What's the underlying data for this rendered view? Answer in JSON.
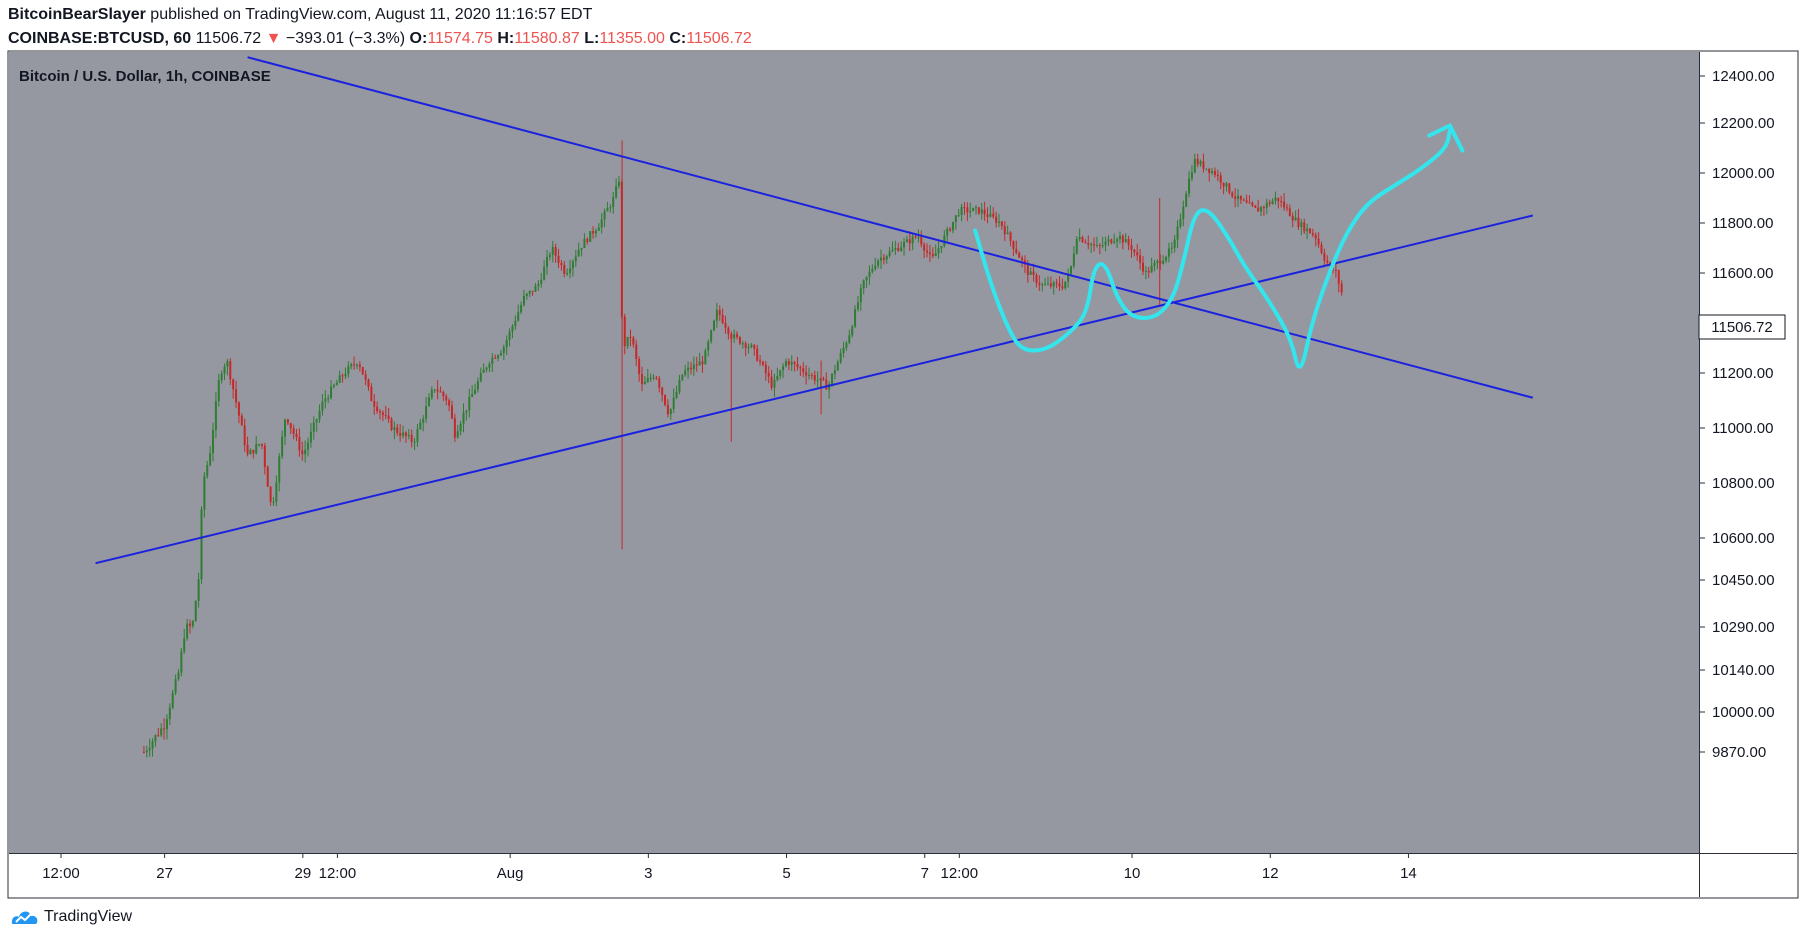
{
  "header": {
    "author": "BitcoinBearSlayer",
    "published_text": "published on TradingView.com, August 11, 2020 11:16:57 EDT",
    "symbol": "COINBASE:BTCUSD, 60",
    "last": "11506.72",
    "arrow": "▼",
    "change": "−393.01 (−3.3%)",
    "o_label": "O:",
    "o_value": "11574.75",
    "h_label": "H:",
    "h_value": "11580.87",
    "l_label": "L:",
    "l_value": "11355.00",
    "c_label": "C:",
    "c_value": "11506.72"
  },
  "footer": {
    "brand": "TradingView"
  },
  "colors": {
    "background": "#9598a1",
    "up": "#2e7d32",
    "down": "#c62828",
    "trendline": "#1a22e0",
    "drawing": "#33e6ee",
    "header_down": "#ef5350"
  },
  "chart_data": {
    "type": "candlestick",
    "title": "Bitcoin / U.S. Dollar, 1h, COINBASE",
    "timeframe": "1h",
    "y_ticks": [
      12400,
      12200,
      12000,
      11800,
      11600,
      11400,
      11200,
      11000,
      10800,
      10600,
      10450,
      10290,
      10140,
      10000,
      9870
    ],
    "y_tick_labels": [
      "12400.00",
      "12200.00",
      "12000.00",
      "11800.00",
      "11600.00",
      "11400.00",
      "11200.00",
      "11000.00",
      "10800.00",
      "10600.00",
      "10450.00",
      "10290.00",
      "10140.00",
      "10000.00",
      "9870.00"
    ],
    "x_tick_labels": [
      "12:00",
      "27",
      "29",
      "12:00",
      "Aug",
      "3",
      "5",
      "7",
      "12:00",
      "10",
      "12",
      "14"
    ],
    "x_tick_days": [
      25.5,
      27,
      29,
      29.5,
      32,
      34,
      36,
      38,
      38.5,
      41,
      43,
      45
    ],
    "last_price_label": "11506.72",
    "price_path": [
      [
        26.7,
        9870
      ],
      [
        27.0,
        9960
      ],
      [
        27.2,
        10130
      ],
      [
        27.3,
        10290
      ],
      [
        27.4,
        10290
      ],
      [
        27.5,
        10470
      ],
      [
        27.55,
        10800
      ],
      [
        27.65,
        10900
      ],
      [
        27.8,
        11200
      ],
      [
        27.9,
        11250
      ],
      [
        28.2,
        10900
      ],
      [
        28.4,
        10950
      ],
      [
        28.55,
        10700
      ],
      [
        28.75,
        11050
      ],
      [
        29.0,
        10900
      ],
      [
        29.3,
        11100
      ],
      [
        29.6,
        11200
      ],
      [
        29.8,
        11250
      ],
      [
        30.0,
        11100
      ],
      [
        30.3,
        11000
      ],
      [
        30.6,
        10950
      ],
      [
        30.9,
        11150
      ],
      [
        31.1,
        11100
      ],
      [
        31.2,
        10980
      ],
      [
        31.5,
        11150
      ],
      [
        31.7,
        11250
      ],
      [
        31.9,
        11300
      ],
      [
        32.2,
        11500
      ],
      [
        32.4,
        11550
      ],
      [
        32.6,
        11700
      ],
      [
        32.8,
        11600
      ],
      [
        33.0,
        11700
      ],
      [
        33.3,
        11800
      ],
      [
        33.5,
        11900
      ],
      [
        33.6,
        12000
      ],
      [
        33.62,
        11300
      ],
      [
        33.75,
        11350
      ],
      [
        33.9,
        11150
      ],
      [
        34.1,
        11200
      ],
      [
        34.3,
        11050
      ],
      [
        34.5,
        11200
      ],
      [
        34.8,
        11250
      ],
      [
        35.0,
        11450
      ],
      [
        35.2,
        11350
      ],
      [
        35.5,
        11300
      ],
      [
        35.8,
        11150
      ],
      [
        36.0,
        11250
      ],
      [
        36.3,
        11200
      ],
      [
        36.6,
        11150
      ],
      [
        36.9,
        11350
      ],
      [
        37.1,
        11550
      ],
      [
        37.3,
        11650
      ],
      [
        37.6,
        11700
      ],
      [
        37.9,
        11750
      ],
      [
        38.1,
        11650
      ],
      [
        38.3,
        11750
      ],
      [
        38.5,
        11850
      ],
      [
        38.8,
        11850
      ],
      [
        39.1,
        11800
      ],
      [
        39.3,
        11700
      ],
      [
        39.5,
        11600
      ],
      [
        39.7,
        11550
      ],
      [
        40.0,
        11550
      ],
      [
        40.1,
        11600
      ],
      [
        40.2,
        11750
      ],
      [
        40.5,
        11700
      ],
      [
        40.8,
        11750
      ],
      [
        41.0,
        11700
      ],
      [
        41.2,
        11600
      ],
      [
        41.4,
        11650
      ],
      [
        41.6,
        11700
      ],
      [
        41.8,
        11950
      ],
      [
        41.9,
        12050
      ],
      [
        42.2,
        12000
      ],
      [
        42.5,
        11900
      ],
      [
        42.8,
        11850
      ],
      [
        43.1,
        11900
      ],
      [
        43.4,
        11800
      ],
      [
        43.65,
        11750
      ],
      [
        43.8,
        11650
      ],
      [
        43.95,
        11600
      ],
      [
        44.05,
        11506.72
      ]
    ],
    "trendlines": [
      {
        "from": [
          26.0,
          10510
        ],
        "to": [
          46.8,
          11830
        ]
      },
      {
        "from": [
          28.2,
          12480
        ],
        "to": [
          46.8,
          11110
        ]
      }
    ],
    "drawing_path": [
      [
        38.73,
        11770
      ],
      [
        38.95,
        11560
      ],
      [
        39.2,
        11380
      ],
      [
        39.4,
        11290
      ],
      [
        39.75,
        11290
      ],
      [
        40.1,
        11360
      ],
      [
        40.35,
        11440
      ],
      [
        40.45,
        11630
      ],
      [
        40.62,
        11640
      ],
      [
        40.78,
        11500
      ],
      [
        41.0,
        11420
      ],
      [
        41.35,
        11420
      ],
      [
        41.6,
        11500
      ],
      [
        41.75,
        11650
      ],
      [
        41.9,
        11840
      ],
      [
        42.1,
        11860
      ],
      [
        42.4,
        11740
      ],
      [
        42.6,
        11640
      ],
      [
        42.8,
        11560
      ],
      [
        43.0,
        11480
      ],
      [
        43.3,
        11340
      ],
      [
        43.43,
        11180
      ],
      [
        43.6,
        11400
      ],
      [
        43.85,
        11600
      ],
      [
        44.1,
        11760
      ],
      [
        44.4,
        11880
      ],
      [
        44.8,
        11950
      ],
      [
        45.2,
        12020
      ],
      [
        45.55,
        12100
      ],
      [
        45.6,
        12170
      ]
    ],
    "drawing_arrow": [
      [
        45.3,
        12150
      ],
      [
        45.6,
        12190
      ],
      [
        45.78,
        12090
      ]
    ]
  }
}
